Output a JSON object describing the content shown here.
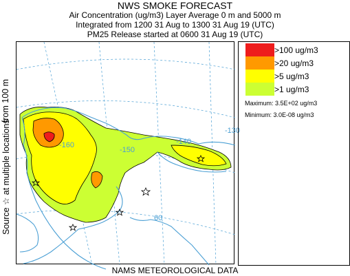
{
  "header": {
    "title": "NWS SMOKE FORECAST",
    "line1": "Air Concentration (ug/m3) Layer Average    0 m and  5000 m",
    "line2": "Integrated from 1200 31 Aug to 1300 31 Aug 19 (UTC)",
    "line3": "PM25 Release started at 0600 31 Aug 19 (UTC)"
  },
  "side_label": {
    "left_part": "Source ☆ at multiple locations",
    "right_part": "from   100 m"
  },
  "footer": "NAMS METEOROLOGICAL DATA",
  "legend": {
    "items": [
      {
        "label": ">100 ug/m3",
        "color": "#ee1c1c"
      },
      {
        "label": ">20 ug/m3",
        "color": "#ff9900"
      },
      {
        "label": ">5 ug/m3",
        "color": "#ffff00"
      },
      {
        "label": ">1 ug/m3",
        "color": "#ccff33"
      }
    ],
    "maximum": "Maximum: 3.5E+02 ug/m3",
    "minimum": "Minimum: 3.0E-08 ug/m3"
  },
  "map": {
    "grid_labels": [
      "-160",
      "-150",
      "-140",
      "-130",
      "60"
    ],
    "colors": {
      "coast": "#4a9fd4",
      "grid": "#4a9fd4",
      "contour": "#000000"
    }
  }
}
